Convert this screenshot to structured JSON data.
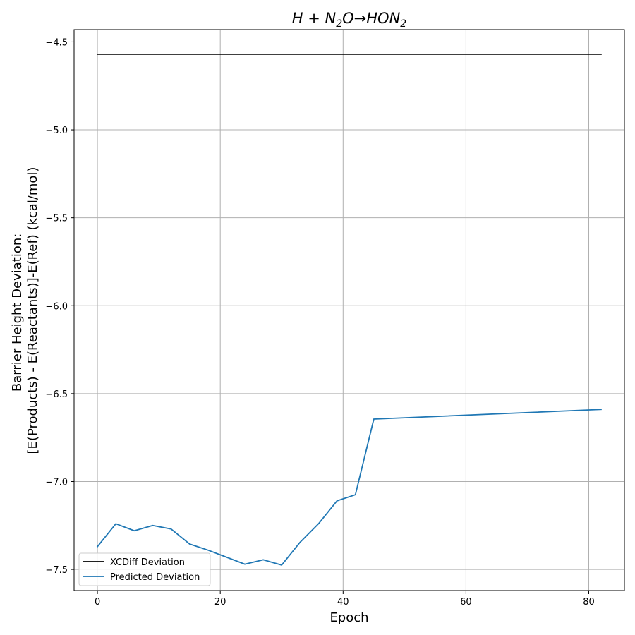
{
  "chart_data": {
    "type": "line",
    "title": "H + N2O→HON2",
    "title_parts": {
      "pre": "H + N",
      "sub1": "2",
      "mid": "O→HON",
      "sub2": "2"
    },
    "xlabel": "Epoch",
    "ylabel_line1": "Barrier Height Deviation:",
    "ylabel_line2": "[E(Products) - E(Reactants)]-E(Ref) (kcal/mol)",
    "xlim": [
      -3.8,
      85.8
    ],
    "ylim": [
      -7.62,
      -4.43
    ],
    "xticks": [
      0,
      20,
      40,
      60,
      80
    ],
    "yticks": [
      -4.5,
      -5.0,
      -5.5,
      -6.0,
      -6.5,
      -7.0,
      -7.5
    ],
    "xtick_labels": [
      "0",
      "20",
      "40",
      "60",
      "80"
    ],
    "ytick_labels": [
      "−4.5",
      "−5.0",
      "−5.5",
      "−6.0",
      "−6.5",
      "−7.0",
      "−7.5"
    ],
    "grid": true,
    "legend_position": "lower-left",
    "series": [
      {
        "name": "XCDiff Deviation",
        "color": "#000000",
        "x": [
          0,
          82
        ],
        "y": [
          -4.57,
          -4.57
        ]
      },
      {
        "name": "Predicted Deviation",
        "color": "#1f77b4",
        "x": [
          0,
          3,
          6,
          9,
          12,
          15,
          18,
          21,
          24,
          27,
          30,
          33,
          36,
          39,
          42,
          45,
          82
        ],
        "y": [
          -7.37,
          -7.24,
          -7.28,
          -7.25,
          -7.27,
          -7.355,
          -7.39,
          -7.43,
          -7.47,
          -7.445,
          -7.475,
          -7.345,
          -7.24,
          -7.11,
          -7.075,
          -6.645,
          -6.59
        ]
      }
    ]
  }
}
